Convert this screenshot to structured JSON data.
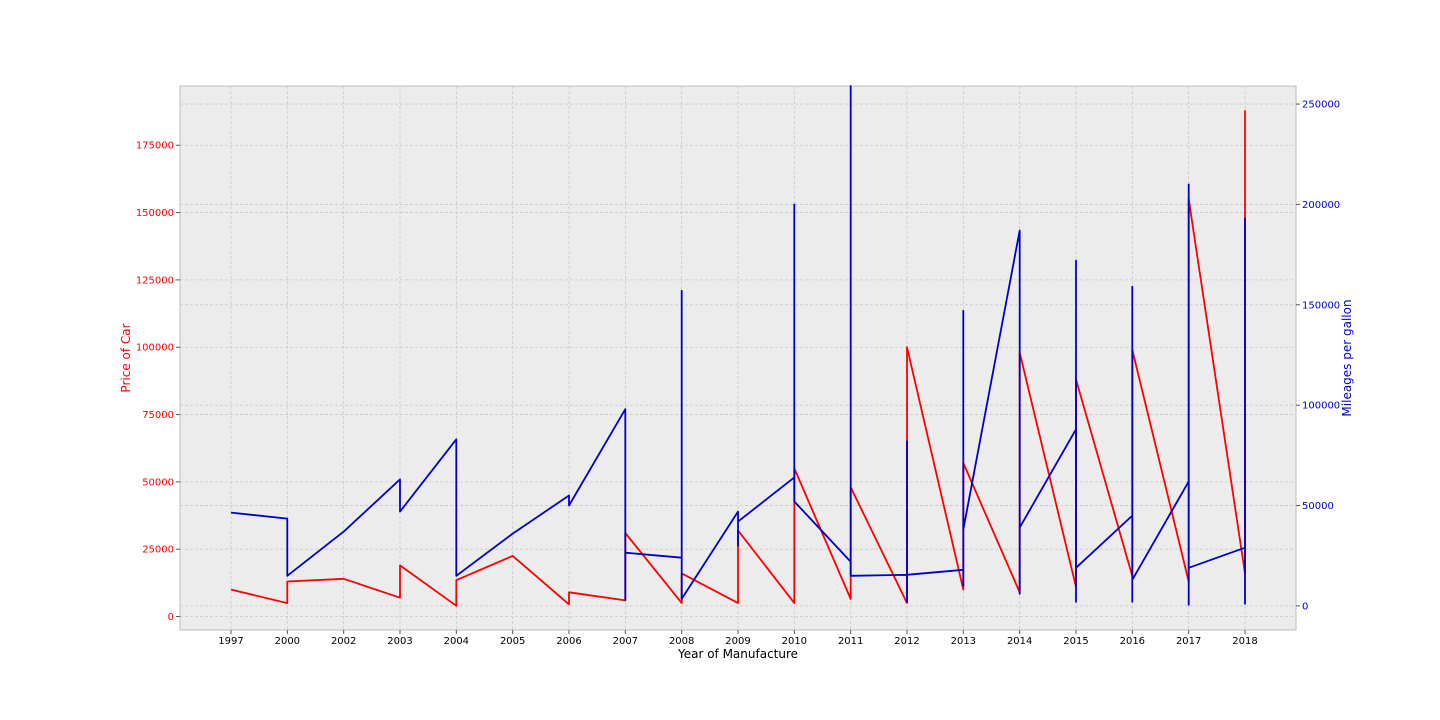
{
  "chart_data": {
    "type": "line",
    "xlabel": "Year of Manufacture",
    "ylabel_left": "Price of Car",
    "ylabel_right": "Mileages per gallon",
    "x_categories": [
      "1997",
      "2000",
      "2002",
      "2003",
      "2004",
      "2005",
      "2006",
      "2007",
      "2008",
      "2009",
      "2010",
      "2011",
      "2012",
      "2013",
      "2014",
      "2015",
      "2016",
      "2017",
      "2018"
    ],
    "y_left_ticks": [
      0,
      25000,
      50000,
      75000,
      100000,
      125000,
      150000,
      175000
    ],
    "y_left_lim": [
      -5000,
      197000
    ],
    "y_right_ticks": [
      0,
      50000,
      100000,
      150000,
      200000,
      250000
    ],
    "y_right_lim": [
      -12000,
      259000
    ],
    "grid": true,
    "colors": {
      "price": "#ff0000",
      "mileage": "#0000cc",
      "plot_bg": "#ececec",
      "grid": "#c8c8c8",
      "left_axis_text": "#ff0000",
      "right_axis_text": "#0000cc"
    },
    "series": [
      {
        "axis": "left",
        "values": [
          [
            0,
            10000
          ],
          [
            1,
            5000
          ],
          [
            1,
            13000
          ],
          [
            2,
            14000
          ],
          [
            3,
            7000
          ],
          [
            3,
            19000
          ],
          [
            4,
            4000
          ],
          [
            4,
            13500
          ],
          [
            5,
            22500
          ],
          [
            6,
            4500
          ],
          [
            6,
            9000
          ],
          [
            7,
            6000
          ],
          [
            7,
            31000
          ],
          [
            8,
            5000
          ],
          [
            8,
            16000
          ],
          [
            9,
            5000
          ],
          [
            9,
            32000
          ],
          [
            10,
            5000
          ],
          [
            10,
            55000
          ],
          [
            11,
            6500
          ],
          [
            11,
            48000
          ],
          [
            12,
            5000
          ],
          [
            12,
            100000
          ],
          [
            13,
            10000
          ],
          [
            13,
            57000
          ],
          [
            14,
            9000
          ],
          [
            14,
            98000
          ],
          [
            15,
            11000
          ],
          [
            15,
            88000
          ],
          [
            16,
            15000
          ],
          [
            16,
            99000
          ],
          [
            17,
            13000
          ],
          [
            17,
            155000
          ],
          [
            18,
            16000
          ],
          [
            18,
            188000
          ]
        ]
      },
      {
        "axis": "right",
        "values": [
          [
            0,
            46500
          ],
          [
            1,
            43500
          ],
          [
            1,
            15000
          ],
          [
            2,
            37000
          ],
          [
            3,
            63000
          ],
          [
            3,
            47000
          ],
          [
            4,
            83000
          ],
          [
            4,
            15000
          ],
          [
            5,
            36000
          ],
          [
            6,
            55000
          ],
          [
            6,
            50000
          ],
          [
            7,
            98000
          ],
          [
            7,
            3000
          ],
          [
            7,
            26500
          ],
          [
            8,
            24000
          ],
          [
            8,
            157000
          ],
          [
            8,
            4000
          ],
          [
            8,
            3500
          ],
          [
            9,
            47000
          ],
          [
            9,
            30000
          ],
          [
            9,
            42000
          ],
          [
            10,
            64000
          ],
          [
            10,
            200000
          ],
          [
            10,
            52000
          ],
          [
            11,
            22000
          ],
          [
            11,
            259000
          ],
          [
            11,
            15000
          ],
          [
            12,
            15500
          ],
          [
            12,
            82000
          ],
          [
            12,
            2000
          ],
          [
            12,
            15500
          ],
          [
            13,
            18000
          ],
          [
            13,
            147000
          ],
          [
            13,
            10000
          ],
          [
            13,
            147000
          ],
          [
            13,
            38000
          ],
          [
            14,
            187000
          ],
          [
            14,
            6000
          ],
          [
            14,
            39000
          ],
          [
            15,
            88000
          ],
          [
            15,
            172000
          ],
          [
            15,
            2000
          ],
          [
            15,
            19000
          ],
          [
            16,
            45000
          ],
          [
            16,
            159000
          ],
          [
            16,
            2000
          ],
          [
            16,
            159000
          ],
          [
            16,
            13000
          ],
          [
            17,
            62000
          ],
          [
            17,
            210000
          ],
          [
            17,
            500
          ],
          [
            17,
            19000
          ],
          [
            18,
            29000
          ],
          [
            18,
            193000
          ],
          [
            18,
            1000
          ],
          [
            18,
            47000
          ]
        ]
      }
    ]
  }
}
